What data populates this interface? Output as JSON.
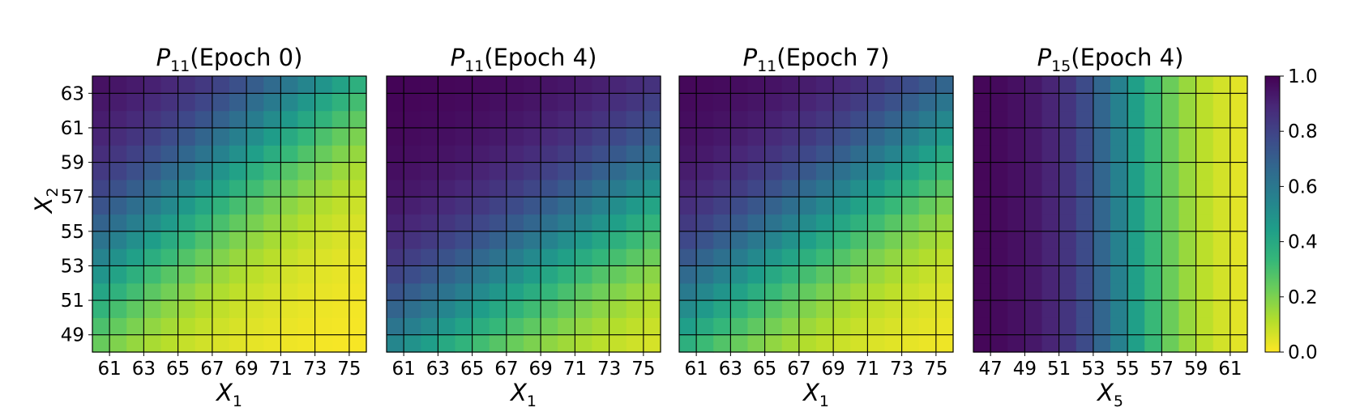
{
  "chart_data": [
    {
      "type": "heatmap",
      "title": "P11(Epoch 0)",
      "title_main": "P",
      "title_sub": "11",
      "title_rest": "(Epoch 0)",
      "xlabel_main": "X",
      "xlabel_sub": "1",
      "ylabel_main": "X",
      "ylabel_sub": "2",
      "xlim": [
        60,
        76
      ],
      "ylim": [
        48,
        64
      ],
      "x_ticks": [
        "61",
        "63",
        "65",
        "67",
        "69",
        "71",
        "73",
        "75"
      ],
      "y_ticks": [
        "49",
        "51",
        "53",
        "55",
        "57",
        "59",
        "61",
        "63"
      ],
      "grid": true,
      "value_model": {
        "kind": "sigmoid_diagonal",
        "base": -0.8,
        "x_coef": -0.22,
        "y_coef": 0.26,
        "scale": 0.42,
        "x_center": 68,
        "y_center": 56
      }
    },
    {
      "type": "heatmap",
      "title": "P11(Epoch 4)",
      "title_main": "P",
      "title_sub": "11",
      "title_rest": "(Epoch 4)",
      "xlabel_main": "X",
      "xlabel_sub": "1",
      "xlim": [
        60,
        76
      ],
      "ylim": [
        48,
        64
      ],
      "x_ticks": [
        "61",
        "63",
        "65",
        "67",
        "69",
        "71",
        "73",
        "75"
      ],
      "y_ticks": [],
      "grid": true,
      "value_model": {
        "kind": "sigmoid_diagonal",
        "base": 0.9,
        "x_coef": -0.18,
        "y_coef": 0.28,
        "scale": 0.42,
        "x_center": 68,
        "y_center": 56
      }
    },
    {
      "type": "heatmap",
      "title": "P11(Epoch 7)",
      "title_main": "P",
      "title_sub": "11",
      "title_rest": "(Epoch 7)",
      "xlabel_main": "X",
      "xlabel_sub": "1",
      "xlim": [
        60,
        76
      ],
      "ylim": [
        48,
        64
      ],
      "x_ticks": [
        "61",
        "63",
        "65",
        "67",
        "69",
        "71",
        "73",
        "75"
      ],
      "y_ticks": [],
      "grid": true,
      "value_model": {
        "kind": "sigmoid_diagonal",
        "base": 0.1,
        "x_coef": -0.2,
        "y_coef": 0.28,
        "scale": 0.42,
        "x_center": 68,
        "y_center": 56
      }
    },
    {
      "type": "heatmap",
      "title": "P15(Epoch 4)",
      "title_main": "P",
      "title_sub": "15",
      "title_rest": "(Epoch 4)",
      "xlabel_main": "X",
      "xlabel_sub": "5",
      "xlim": [
        46,
        62
      ],
      "ylim": [
        48,
        64
      ],
      "x_ticks": [
        "47",
        "49",
        "51",
        "53",
        "55",
        "57",
        "59",
        "61"
      ],
      "y_ticks": [],
      "grid": true,
      "value_model": {
        "kind": "sigmoid_x",
        "base": 0.0,
        "x_coef": -0.45,
        "scale": 0.42,
        "x_center": 55
      }
    }
  ],
  "colorbar": {
    "ticks": [
      "1.0",
      "0.8",
      "0.6",
      "0.4",
      "0.2",
      "0.0"
    ],
    "range": [
      0,
      1
    ],
    "colormap": "viridis_r",
    "stops": [
      "#fde725",
      "#b5de2b",
      "#6ece58",
      "#35b779",
      "#1f9e89",
      "#26828e",
      "#31688e",
      "#3e4989",
      "#482878",
      "#440154"
    ]
  },
  "colors": {
    "grid": "#000000",
    "axis": "#000000"
  }
}
